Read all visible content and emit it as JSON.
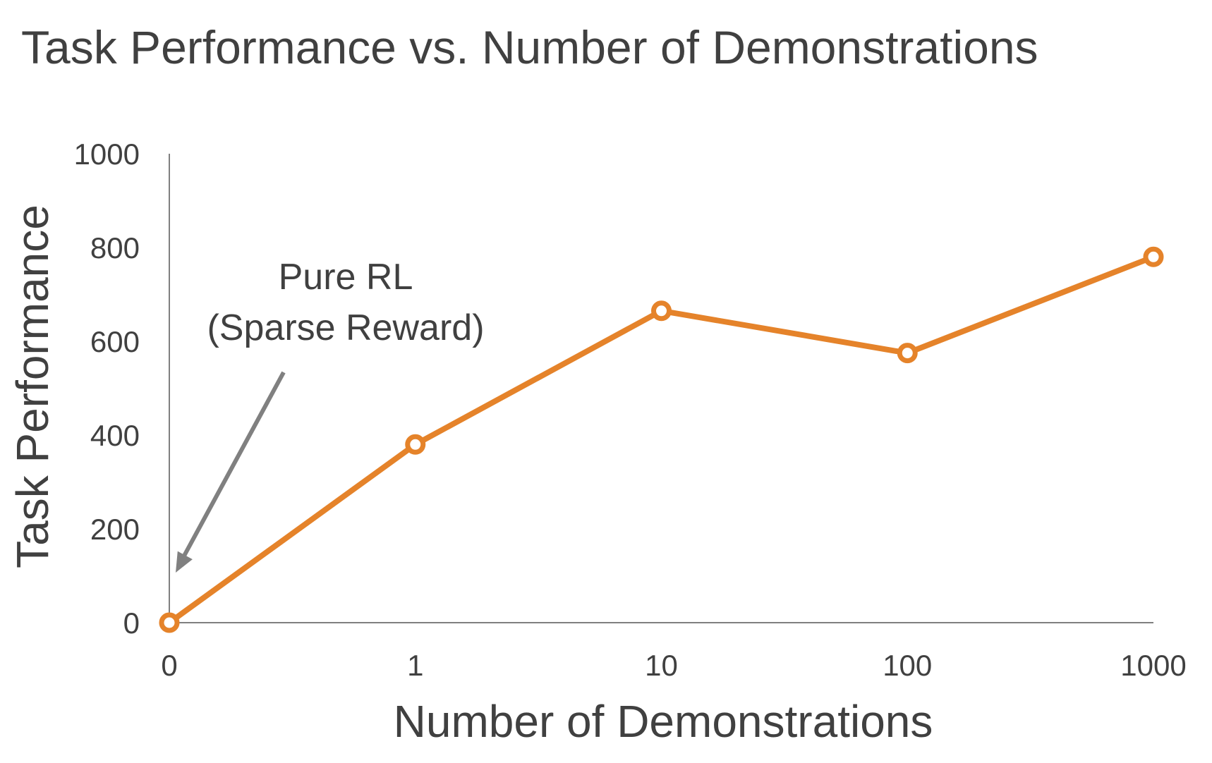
{
  "colors": {
    "series": "#E5832A",
    "axis": "#808080",
    "text": "#404040",
    "arrow": "#808080",
    "marker_fill": "#ffffff"
  },
  "chart_data": {
    "type": "line",
    "title": "Task Performance vs. Number of Demonstrations",
    "xlabel": "Number of Demonstrations",
    "ylabel": "Task Performance",
    "categories": [
      "0",
      "1",
      "10",
      "100",
      "1000"
    ],
    "y_ticks": [
      "0",
      "200",
      "400",
      "600",
      "800",
      "1000"
    ],
    "ylim": [
      0,
      1000
    ],
    "grid": false,
    "legend": "none",
    "series": [
      {
        "values": [
          0,
          380,
          665,
          575,
          780
        ]
      }
    ],
    "annotations": [
      {
        "line1": "Pure RL",
        "line2": "(Sparse Reward)",
        "points_to_category": "0"
      }
    ]
  }
}
